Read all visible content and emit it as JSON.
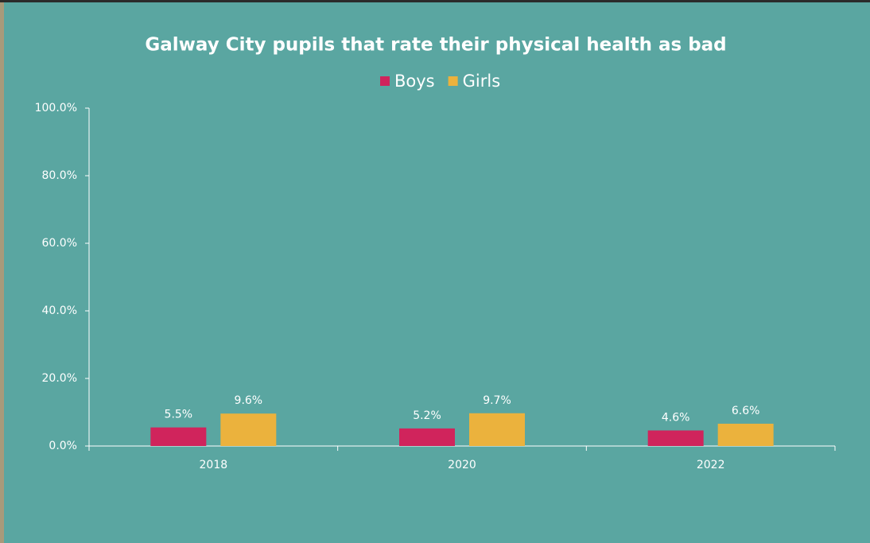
{
  "chart_data": {
    "type": "bar",
    "title": "Galway City pupils that rate their physical health as bad",
    "categories": [
      "2018",
      "2020",
      "2022"
    ],
    "series": [
      {
        "name": "Boys",
        "color": "#d0245c",
        "values": [
          5.5,
          5.2,
          4.6
        ],
        "value_labels": [
          "5.5%",
          "5.2%",
          "4.6%"
        ]
      },
      {
        "name": "Girls",
        "color": "#ebb23d",
        "values": [
          9.6,
          9.7,
          6.6
        ],
        "value_labels": [
          "9.6%",
          "9.7%",
          "6.6%"
        ]
      }
    ],
    "ylim": [
      0,
      100
    ],
    "yticks": [
      {
        "value": 0,
        "label": "0.0%"
      },
      {
        "value": 20,
        "label": "20.0%"
      },
      {
        "value": 40,
        "label": "40.0%"
      },
      {
        "value": 60,
        "label": "60.0%"
      },
      {
        "value": 80,
        "label": "80.0%"
      },
      {
        "value": 100,
        "label": "100.0%"
      }
    ],
    "legend": "top"
  }
}
